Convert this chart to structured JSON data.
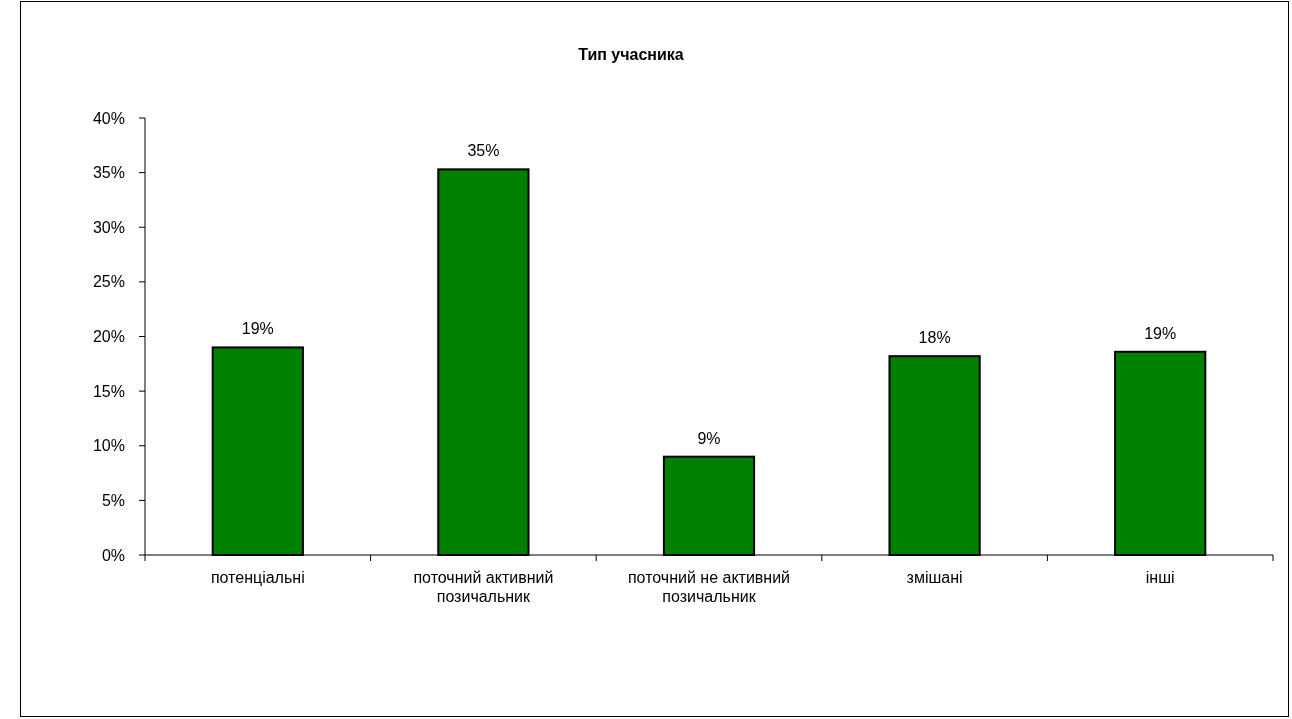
{
  "chart_data": {
    "type": "bar",
    "title": "Тип учасника",
    "categories": [
      "потенціальні",
      "поточний активний позичальник",
      "поточний не активний позичальник",
      "змішані",
      "інші"
    ],
    "values": [
      19,
      35.3,
      9,
      18.2,
      18.6
    ],
    "value_labels": [
      "19%",
      "35%",
      "9%",
      "18%",
      "19%"
    ],
    "color": "#008000",
    "ylim": [
      0,
      40
    ],
    "yticks": [
      {
        "value": 0,
        "label": "0%"
      },
      {
        "value": 5,
        "label": "5%"
      },
      {
        "value": 10,
        "label": "10%"
      },
      {
        "value": 15,
        "label": "15%"
      },
      {
        "value": 20,
        "label": "20%"
      },
      {
        "value": 25,
        "label": "25%"
      },
      {
        "value": 30,
        "label": "30%"
      },
      {
        "value": 35,
        "label": "35%"
      },
      {
        "value": 40,
        "label": "40%"
      }
    ],
    "grid": false
  }
}
